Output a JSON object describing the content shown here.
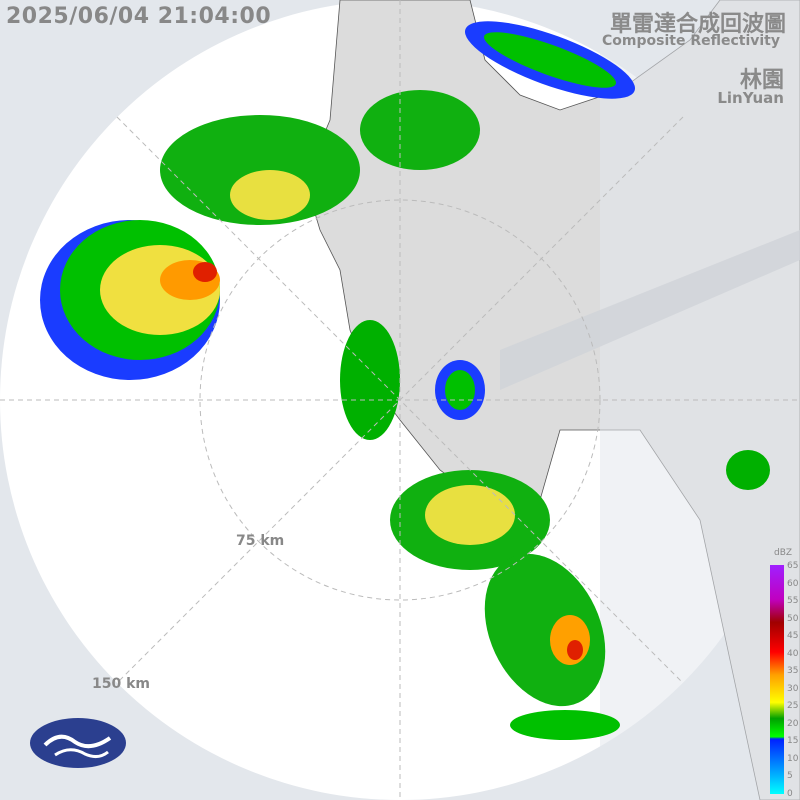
{
  "header": {
    "timestamp": "2025/06/04 21:04:00",
    "title_zh": "單雷達合成回波圖",
    "title_en": "Composite Reflectivity",
    "station_zh": "林園",
    "station_en": "LinYuan"
  },
  "range_rings": [
    "75 km",
    "150 km"
  ],
  "legend": {
    "unit": "dBZ",
    "ticks": [
      "65",
      "60",
      "55",
      "50",
      "45",
      "40",
      "35",
      "30",
      "25",
      "20",
      "15",
      "10",
      "5",
      "0"
    ]
  },
  "logo": {
    "name": "cwa-logo-icon",
    "color": "#2b3f8f"
  }
}
